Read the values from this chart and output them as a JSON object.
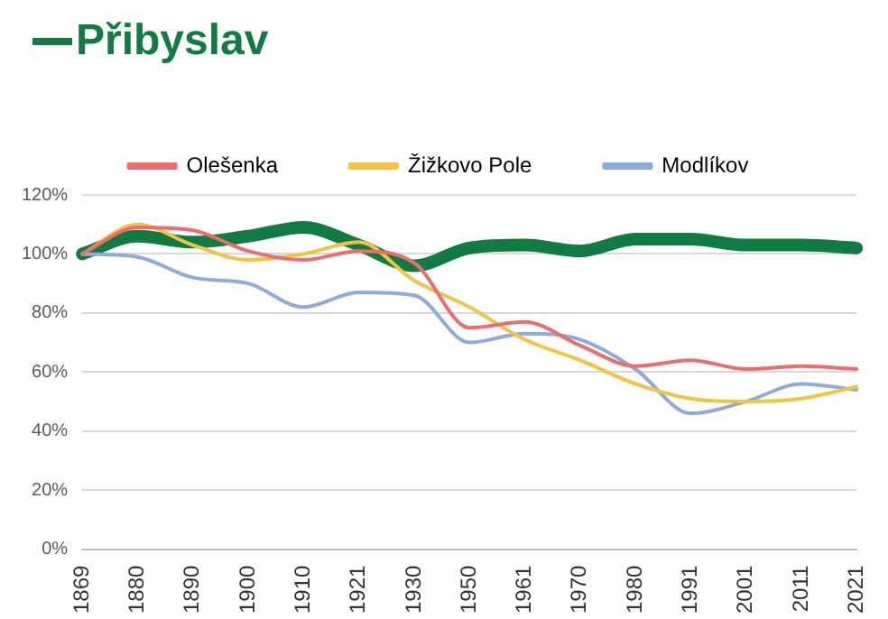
{
  "chart_data": {
    "type": "line",
    "categories": [
      "1869",
      "1880",
      "1890",
      "1900",
      "1910",
      "1921",
      "1930",
      "1950",
      "1961",
      "1970",
      "1980",
      "1991",
      "2001",
      "2011",
      "2021"
    ],
    "series": [
      {
        "name": "Přibyslav",
        "color": "#107c41",
        "values": [
          100,
          106,
          104,
          106,
          109,
          103,
          96,
          102,
          103,
          101,
          105,
          105,
          103,
          103,
          102
        ]
      },
      {
        "name": "Olešenka",
        "color": "#ee6b6e",
        "values": [
          100,
          109,
          108,
          101,
          98,
          101,
          97,
          75,
          77,
          69,
          62,
          64,
          61,
          62,
          61
        ]
      },
      {
        "name": "Žižkovo Pole",
        "color": "#f5c342",
        "values": [
          100,
          110,
          103,
          98,
          100,
          104,
          91,
          82,
          71,
          64,
          56,
          51,
          50,
          51,
          55
        ]
      },
      {
        "name": "Modlíkov",
        "color": "#8faadc",
        "values": [
          100,
          99,
          92,
          90,
          82,
          87,
          86,
          70,
          73,
          71,
          61,
          46,
          50,
          56,
          54
        ]
      }
    ],
    "ylim": [
      0,
      120
    ],
    "yticks": [
      {
        "value": 0,
        "label": "0%"
      },
      {
        "value": 20,
        "label": "20%"
      },
      {
        "value": 40,
        "label": "40%"
      },
      {
        "value": 60,
        "label": "60%"
      },
      {
        "value": 80,
        "label": "80%"
      },
      {
        "value": 100,
        "label": "100%"
      },
      {
        "value": 120,
        "label": "120%"
      }
    ],
    "grid": "y",
    "legend": "top",
    "marker": "none",
    "line_style": "solid"
  }
}
